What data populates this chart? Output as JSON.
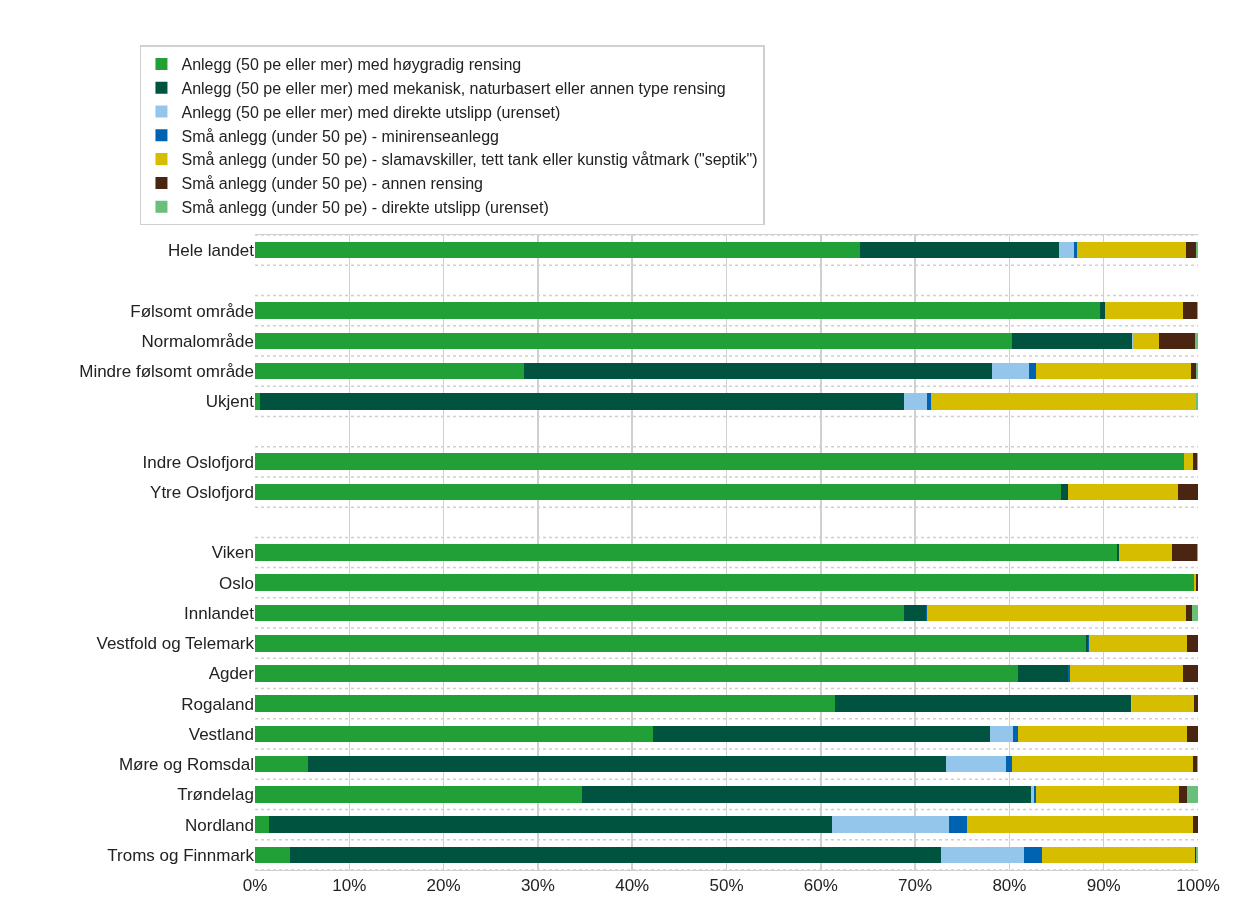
{
  "chart_data": {
    "type": "bar",
    "orientation": "horizontal",
    "stacked": true,
    "categories": [
      "Hele landet",
      null,
      "Følsomt område",
      "Normalområde",
      "Mindre følsomt område",
      "Ukjent",
      null,
      "Indre Oslofjord",
      "Ytre Oslofjord",
      null,
      "Viken",
      "Oslo",
      "Innlandet",
      "Vestfold og Telemark",
      "Agder",
      "Rogaland",
      "Vestland",
      "Møre og Romsdal",
      "Trøndelag",
      "Nordland",
      "Troms og Finnmark"
    ],
    "series": [
      {
        "name": "Anlegg (50 pe eller mer) med høygradig rensing",
        "color": "#21a038",
        "values": [
          64.2,
          null,
          89.6,
          80.3,
          28.5,
          0.5,
          null,
          98.5,
          85.5,
          null,
          91.4,
          99.6,
          68.8,
          88.1,
          80.9,
          61.5,
          42.2,
          5.6,
          34.7,
          1.5,
          3.7
        ]
      },
      {
        "name": "Anlegg (50 pe eller mer) med mekanisk, naturbasert eller annen type rensing",
        "color": "#00533f",
        "values": [
          21.1,
          null,
          0.5,
          12.7,
          49.7,
          68.3,
          null,
          0,
          0.7,
          null,
          0.2,
          0,
          2.4,
          0.2,
          5.3,
          31.4,
          35.7,
          67.7,
          47.6,
          59.7,
          69.0
        ]
      },
      {
        "name": "Anlegg (50 pe eller mer) med direkte utslipp (urenset)",
        "color": "#93c6ea",
        "values": [
          1.6,
          null,
          0,
          0.1,
          3.9,
          2.5,
          null,
          0,
          0,
          null,
          0,
          0,
          0,
          0,
          0,
          0.1,
          2.5,
          6.3,
          0.3,
          12.4,
          8.8
        ]
      },
      {
        "name": "Små anlegg (under 50 pe) - minirenseanlegg",
        "color": "#0063b1",
        "values": [
          0.3,
          null,
          0,
          0,
          0.7,
          0.4,
          null,
          0,
          0,
          null,
          0,
          0,
          0.1,
          0.1,
          0.2,
          0,
          0.5,
          0.7,
          0.2,
          1.9,
          2.0
        ]
      },
      {
        "name": "Små anlegg (under 50 pe) - slamavskiller, tett tank eller kunstig våtmark (\"septik\")",
        "color": "#d6bd00",
        "values": [
          11.5,
          null,
          8.3,
          2.8,
          16.5,
          28.1,
          null,
          1.0,
          11.7,
          null,
          5.6,
          0.2,
          27.4,
          10.4,
          12.0,
          6.6,
          17.9,
          19.2,
          15.2,
          24.0,
          16.2
        ]
      },
      {
        "name": "Små anlegg (under 50 pe) - annen rensing",
        "color": "#4a2511",
        "values": [
          1.1,
          null,
          1.5,
          3.8,
          0.5,
          0,
          null,
          0.4,
          2.1,
          null,
          2.7,
          0.2,
          0.7,
          1.2,
          1.6,
          0.4,
          1.2,
          0.4,
          0.8,
          0.5,
          0.1
        ]
      },
      {
        "name": "Små anlegg (under 50 pe) - direkte utslipp (urenset)",
        "color": "#6abf7b",
        "values": [
          0.2,
          null,
          0.1,
          0.3,
          0.2,
          0.2,
          null,
          0.1,
          0,
          null,
          0.1,
          0,
          0.6,
          0,
          0,
          0,
          0,
          0.1,
          1.2,
          0,
          0.2
        ]
      }
    ],
    "xlim": [
      0,
      100
    ],
    "xticks": [
      {
        "value": 0,
        "label": "0%"
      },
      {
        "value": 10,
        "label": "10%"
      },
      {
        "value": 20,
        "label": "20%"
      },
      {
        "value": 30,
        "label": "30%"
      },
      {
        "value": 40,
        "label": "40%"
      },
      {
        "value": 50,
        "label": "50%"
      },
      {
        "value": 60,
        "label": "60%"
      },
      {
        "value": 70,
        "label": "70%"
      },
      {
        "value": 80,
        "label": "80%"
      },
      {
        "value": 90,
        "label": "90%"
      },
      {
        "value": 100,
        "label": "100%"
      }
    ],
    "grid": true,
    "legend": "top"
  }
}
